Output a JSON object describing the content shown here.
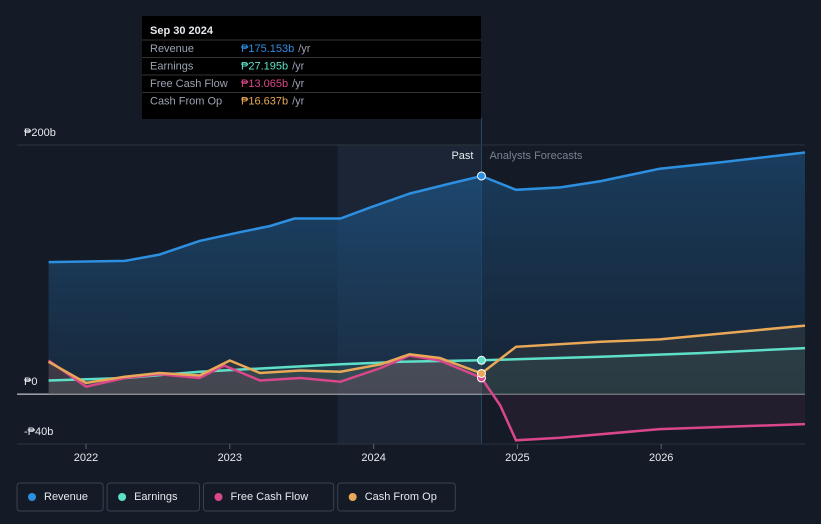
{
  "chart_data": {
    "type": "line",
    "xlim": [
      2021.52,
      2027.0
    ],
    "xticks": [
      2022,
      2023,
      2024,
      2025,
      2026
    ],
    "ylim": [
      -40,
      200
    ],
    "yticks": [
      {
        "value": 200,
        "label": "₱200b"
      },
      {
        "value": 0,
        "label": "₱0"
      },
      {
        "value": -40,
        "label": "-₱40b"
      }
    ],
    "forecast_start": 2024.75,
    "past_label": "Past",
    "forecast_label": "Analysts Forecasts",
    "series": [
      {
        "name": "Revenue",
        "color": "#2d8fe0",
        "x": [
          2021.74,
          2022.27,
          2022.51,
          2022.79,
          2023.07,
          2023.28,
          2023.45,
          2023.77,
          2023.98,
          2024.25,
          2024.53,
          2024.75,
          2024.99,
          2025.3,
          2025.58,
          2025.99,
          2026.41,
          2027.0
        ],
        "values": [
          106,
          107,
          112,
          123,
          130,
          135,
          141,
          141,
          150,
          161,
          169,
          175.153,
          164,
          166,
          171,
          181,
          186,
          194
        ]
      },
      {
        "name": "Earnings",
        "color": "#5ee0c8",
        "x": [
          2021.74,
          2022.27,
          2022.79,
          2023.28,
          2023.77,
          2024.19,
          2024.75,
          2024.99,
          2025.58,
          2026.27,
          2027.0
        ],
        "values": [
          11,
          13,
          18,
          21,
          24,
          26,
          27.195,
          28,
          30,
          33,
          37
        ]
      },
      {
        "name": "Free Cash Flow",
        "color": "#d9478a",
        "x": [
          2021.74,
          2022.0,
          2022.27,
          2022.51,
          2022.79,
          2022.96,
          2023.21,
          2023.49,
          2023.77,
          2024.05,
          2024.25,
          2024.46,
          2024.75,
          2024.88,
          2024.99,
          2025.3,
          2025.99,
          2027.0
        ],
        "values": [
          27,
          6,
          13,
          16,
          13,
          23,
          11,
          13,
          10,
          21,
          31,
          27,
          13.065,
          -9,
          -37,
          -35,
          -28,
          -24
        ]
      },
      {
        "name": "Cash From Op",
        "color": "#e8a857",
        "x": [
          2021.74,
          2022.0,
          2022.27,
          2022.51,
          2022.79,
          2023.0,
          2023.21,
          2023.49,
          2023.77,
          2024.05,
          2024.25,
          2024.46,
          2024.75,
          2024.99,
          2025.58,
          2025.99,
          2027.0
        ],
        "values": [
          26,
          9,
          14,
          17,
          15,
          27,
          17,
          19,
          18,
          24,
          32,
          29,
          16.637,
          38,
          42,
          44,
          55
        ]
      }
    ],
    "tooltip": {
      "date": "Sep 30 2024",
      "rows": [
        {
          "label": "Revenue",
          "value": "₱175.153b",
          "unit": "/yr"
        },
        {
          "label": "Earnings",
          "value": "₱27.195b",
          "unit": "/yr"
        },
        {
          "label": "Free Cash Flow",
          "value": "₱13.065b",
          "unit": "/yr"
        },
        {
          "label": "Cash From Op",
          "value": "₱16.637b",
          "unit": "/yr"
        }
      ]
    }
  }
}
